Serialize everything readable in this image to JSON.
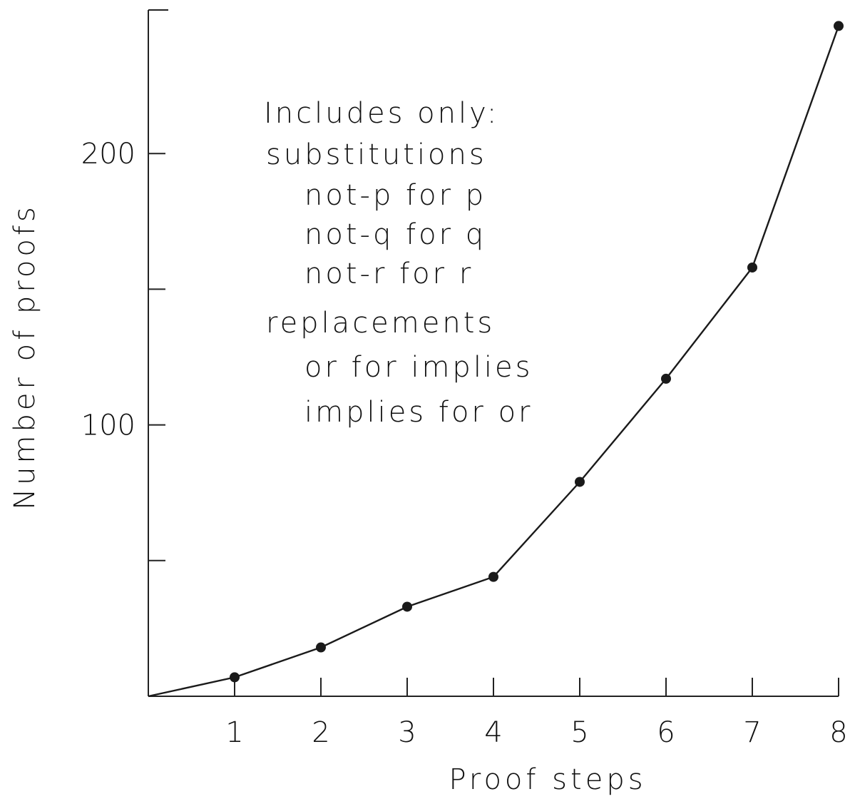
{
  "chart_data": {
    "type": "line",
    "title": "",
    "xlabel": "Proof steps",
    "ylabel": "Number of proofs",
    "x": [
      0,
      1,
      2,
      3,
      4,
      5,
      6,
      7,
      8
    ],
    "y_ticks": [
      200,
      100
    ],
    "minor_y_ticks": [
      50,
      150
    ],
    "ylim": [
      0,
      250
    ],
    "xlim": [
      0,
      8
    ],
    "grid": false,
    "series": [
      {
        "values": [
          0,
          7,
          18,
          33,
          44,
          79,
          117,
          158,
          247
        ]
      }
    ],
    "x_tick_labels": [
      "1",
      "2",
      "3",
      "4",
      "5",
      "6",
      "7",
      "8"
    ],
    "y_tick_labels": [
      "200",
      "100"
    ],
    "annotation": [
      "Includes only:",
      "substitutions",
      "not-p for p",
      "not-q for q",
      "not-r for r",
      "replacements",
      "or for implies",
      "implies for or"
    ]
  }
}
